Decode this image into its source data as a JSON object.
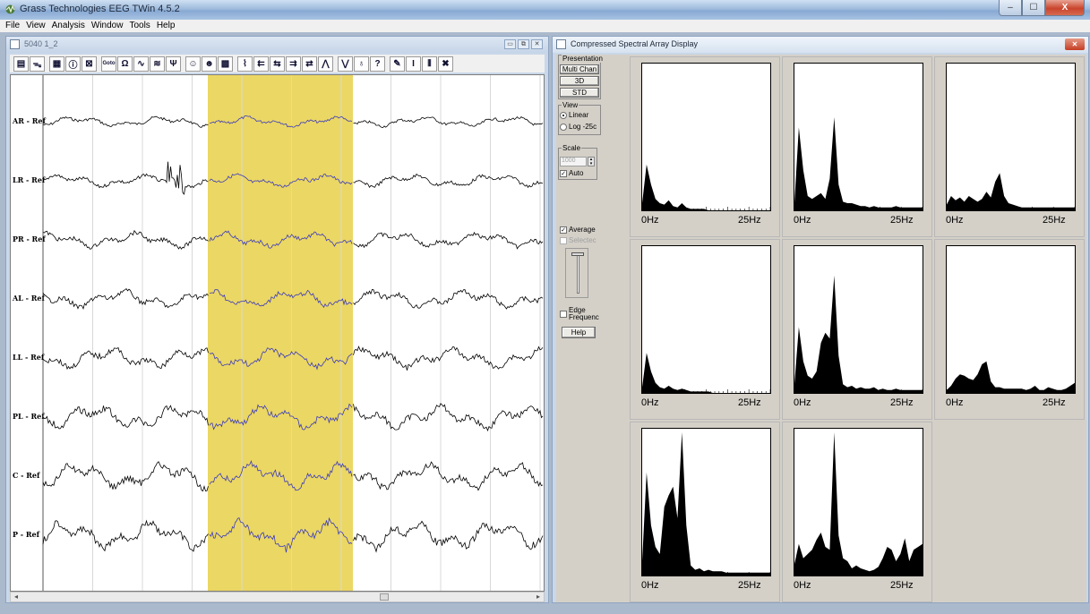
{
  "window": {
    "title": "Grass Technologies EEG TWin 4.5.2",
    "minimize": "–",
    "maximize": "☐",
    "close": "X"
  },
  "menu": [
    "File",
    "View",
    "Analysis",
    "Window",
    "Tools",
    "Help"
  ],
  "eeg_window": {
    "title": "5040 1_2",
    "toolbar_icons": [
      "properties-icon",
      "montage-icon",
      "notes-icon",
      "info-icon",
      "zoom-icon",
      "goto-icon",
      "impedance-icon",
      "waveform-icon",
      "multi-wave-icon",
      "filter-icon",
      "head-icon",
      "persons-icon",
      "grid-icon",
      "ekg-icon",
      "lf-icon",
      "lf-left-icon",
      "hf-icon",
      "hf-left-icon",
      "spike-icon",
      "spike-alt-icon",
      "bulb-icon",
      "key-icon",
      "marker-icon",
      "cursor-icon",
      "columns-icon",
      "close-x-icon"
    ],
    "goto_label": "Goto",
    "ohm_label": "Ω",
    "channels": [
      "AR - Ref",
      "LR - Ref",
      "PR - Ref",
      "AL - Ref",
      "LL - Ref",
      "PL - Ref",
      "C - Ref",
      "P - Ref"
    ],
    "selection_color": "#e8d048",
    "trace_color": "#000000",
    "selected_trace_color": "#3b3bbd"
  },
  "csa_window": {
    "title": "Compressed Spectral Array Display",
    "presentation": {
      "label": "Presentation",
      "buttons": [
        "Multi Chan",
        "3D",
        "STD"
      ]
    },
    "view": {
      "label": "View",
      "options": [
        "Linear",
        "Log -25c"
      ],
      "selected": "Linear"
    },
    "scale": {
      "label": "Scale",
      "value": "1000",
      "auto_label": "Auto",
      "auto_checked": true
    },
    "average_label": "Average",
    "average_checked": true,
    "selected_label": "Selectec",
    "edge_label_1": "Edge",
    "edge_label_2": "Frequenc",
    "help_label": "Help",
    "axis_min": "0Hz",
    "axis_max": "25Hz"
  },
  "chart_data": {
    "type": "area",
    "title": "",
    "x_range": [
      0,
      30
    ],
    "xlabel": "",
    "panels": [
      {
        "y": [
          0.05,
          0.32,
          0.18,
          0.08,
          0.05,
          0.04,
          0.07,
          0.03,
          0.02,
          0.05,
          0.02,
          0.01,
          0.01,
          0.01,
          0.01,
          0.0,
          0.0,
          0.0,
          0.0,
          0.0,
          0.0,
          0.0,
          0.0,
          0.0,
          0.0,
          0.0,
          0.0,
          0.0,
          0.0,
          0.0
        ]
      },
      {
        "y": [
          0.05,
          0.58,
          0.28,
          0.1,
          0.08,
          0.1,
          0.12,
          0.08,
          0.22,
          0.65,
          0.18,
          0.06,
          0.05,
          0.05,
          0.04,
          0.03,
          0.03,
          0.02,
          0.03,
          0.02,
          0.02,
          0.02,
          0.02,
          0.03,
          0.02,
          0.02,
          0.02,
          0.02,
          0.02,
          0.02
        ]
      },
      {
        "y": [
          0.04,
          0.1,
          0.07,
          0.09,
          0.06,
          0.1,
          0.08,
          0.06,
          0.08,
          0.13,
          0.09,
          0.2,
          0.26,
          0.1,
          0.05,
          0.04,
          0.03,
          0.02,
          0.02,
          0.02,
          0.02,
          0.02,
          0.02,
          0.02,
          0.02,
          0.02,
          0.02,
          0.02,
          0.02,
          0.02
        ]
      },
      {
        "y": [
          0.04,
          0.28,
          0.15,
          0.07,
          0.04,
          0.03,
          0.05,
          0.03,
          0.02,
          0.03,
          0.02,
          0.01,
          0.01,
          0.01,
          0.01,
          0.01,
          0.0,
          0.0,
          0.0,
          0.0,
          0.0,
          0.0,
          0.0,
          0.0,
          0.0,
          0.0,
          0.0,
          0.0,
          0.0,
          0.0
        ]
      },
      {
        "y": [
          0.06,
          0.46,
          0.22,
          0.12,
          0.1,
          0.15,
          0.35,
          0.42,
          0.38,
          0.82,
          0.26,
          0.06,
          0.04,
          0.05,
          0.03,
          0.04,
          0.03,
          0.03,
          0.04,
          0.02,
          0.03,
          0.02,
          0.02,
          0.03,
          0.02,
          0.02,
          0.02,
          0.02,
          0.02,
          0.02
        ]
      },
      {
        "y": [
          0.02,
          0.05,
          0.1,
          0.13,
          0.12,
          0.1,
          0.09,
          0.13,
          0.2,
          0.22,
          0.08,
          0.04,
          0.04,
          0.03,
          0.03,
          0.03,
          0.03,
          0.03,
          0.02,
          0.03,
          0.05,
          0.02,
          0.02,
          0.04,
          0.03,
          0.02,
          0.02,
          0.03,
          0.05,
          0.07
        ]
      },
      {
        "y": [
          0.1,
          0.72,
          0.35,
          0.2,
          0.15,
          0.48,
          0.56,
          0.62,
          0.4,
          1.0,
          0.35,
          0.07,
          0.04,
          0.05,
          0.03,
          0.04,
          0.03,
          0.03,
          0.03,
          0.02,
          0.02,
          0.02,
          0.02,
          0.02,
          0.02,
          0.02,
          0.02,
          0.02,
          0.02,
          0.02
        ]
      },
      {
        "y": [
          0.08,
          0.22,
          0.12,
          0.15,
          0.18,
          0.25,
          0.3,
          0.2,
          0.18,
          1.0,
          0.28,
          0.12,
          0.1,
          0.05,
          0.07,
          0.05,
          0.04,
          0.03,
          0.04,
          0.06,
          0.12,
          0.2,
          0.18,
          0.1,
          0.15,
          0.26,
          0.1,
          0.18,
          0.2,
          0.22
        ]
      }
    ]
  }
}
